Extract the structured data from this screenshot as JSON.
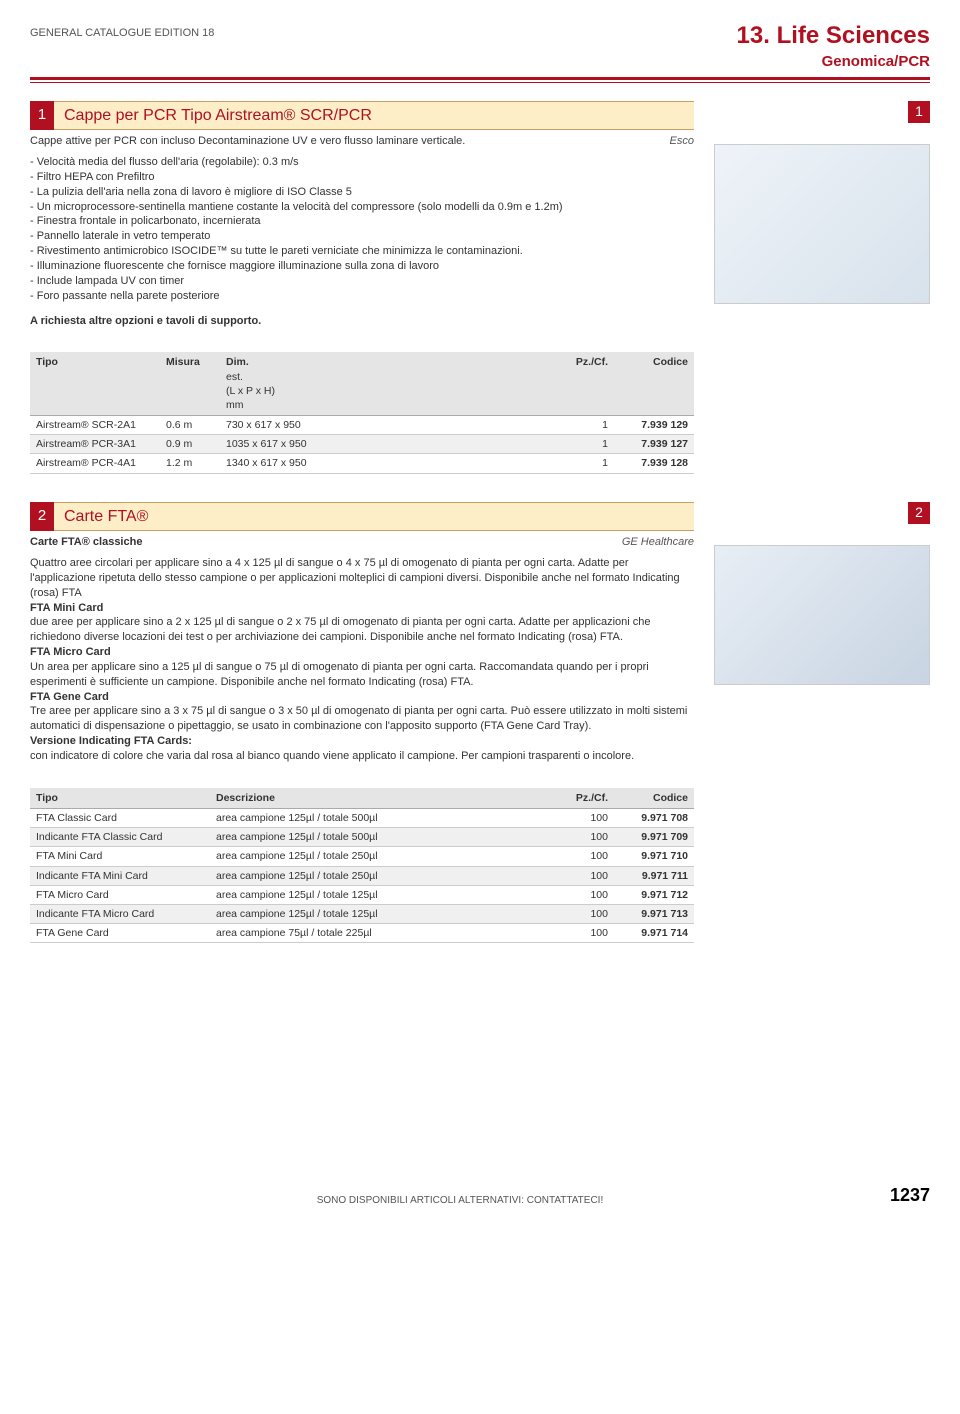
{
  "header": {
    "edition": "GENERAL CATALOGUE EDITION 18",
    "chapter": "13. Life Sciences",
    "subchapter": "Genomica/PCR"
  },
  "section1": {
    "number": "1",
    "title": "Cappe per PCR Tipo Airstream® SCR/PCR",
    "side_badge": "1",
    "subtitle": "Cappe attive per PCR con incluso Decontaminazione UV e vero flusso laminare verticale.",
    "brand": "Esco",
    "bullets": [
      "- Velocità media del flusso dell'aria (regolabile): 0.3 m/s",
      "- Filtro HEPA con Prefiltro",
      "- La pulizia dell'aria nella zona di lavoro è migliore di ISO Classe 5",
      "- Un microprocessore-sentinella mantiene costante la velocità del compressore (solo modelli da 0.9m e 1.2m)",
      "- Finestra frontale in policarbonato, incernierata",
      "- Pannello laterale in vetro temperato",
      "- Rivestimento antimicrobico ISOCIDE™ su tutte le pareti verniciate che minimizza le contaminazioni.",
      "- Illuminazione fluorescente che fornisce maggiore illuminazione sulla zona di lavoro",
      "- Include lampada UV con timer",
      "- Foro passante nella parete posteriore"
    ],
    "note": "A richiesta altre opzioni e tavoli di supporto.",
    "table": {
      "headers": {
        "tipo": "Tipo",
        "misura": "Misura",
        "dim": "Dim.",
        "dim_sub1": "est.",
        "dim_sub2": "(L x P x H)",
        "dim_unit": "mm",
        "pz": "Pz./Cf.",
        "codice": "Codice"
      },
      "rows": [
        {
          "tipo": "Airstream® SCR-2A1",
          "misura": "0.6 m",
          "dim": "730 x 617 x 950",
          "pz": "1",
          "codice": "7.939 129"
        },
        {
          "tipo": "Airstream® PCR-3A1",
          "misura": "0.9 m",
          "dim": "1035 x 617 x 950",
          "pz": "1",
          "codice": "7.939 127"
        },
        {
          "tipo": "Airstream® PCR-4A1",
          "misura": "1.2 m",
          "dim": "1340 x 617 x 950",
          "pz": "1",
          "codice": "7.939 128"
        }
      ]
    }
  },
  "section2": {
    "number": "2",
    "title": "Carte FTA®",
    "side_badge": "2",
    "sub_heading": "Carte FTA® classiche",
    "brand": "GE Healthcare",
    "para1": "Quattro aree circolari per applicare sino a 4 x 125 µl di sangue o 4 x 75 µl di omogenato di pianta per ogni carta. Adatte per l'applicazione ripetuta dello stesso campione o per applicazioni molteplici di campioni diversi. Disponibile anche nel formato Indicating (rosa) FTA",
    "h_mini": "FTA Mini Card",
    "para_mini": "due aree per applicare sino a 2 x 125 µl di sangue o 2 x 75 µl di omogenato di pianta per ogni carta. Adatte per applicazioni che richiedono diverse locazioni dei test o per archiviazione dei campioni. Disponibile anche nel formato Indicating (rosa) FTA.",
    "h_micro": "FTA Micro Card",
    "para_micro": "Un area per applicare sino a 125 µl di sangue o 75 µl di omogenato di pianta per ogni carta. Raccomandata quando per i propri esperimenti è sufficiente un campione. Disponibile anche nel formato Indicating (rosa) FTA.",
    "h_gene": "FTA Gene Card",
    "para_gene": "Tre aree per applicare sino a 3 x 75 µl di sangue o 3 x 50 µl di omogenato di pianta per ogni carta. Può essere utilizzato in molti sistemi automatici di dispensazione o pipettaggio, se usato in combinazione con l'apposito supporto (FTA Gene Card Tray).",
    "h_indic": "Versione Indicating FTA Cards:",
    "para_indic": "con indicatore di colore che varia dal rosa al bianco quando viene applicato il campione. Per campioni trasparenti o incolore.",
    "table": {
      "headers": {
        "tipo": "Tipo",
        "descrizione": "Descrizione",
        "pz": "Pz./Cf.",
        "codice": "Codice"
      },
      "rows": [
        {
          "tipo": "FTA Classic Card",
          "desc": "area campione 125µl / totale 500µl",
          "pz": "100",
          "codice": "9.971 708"
        },
        {
          "tipo": "Indicante FTA Classic Card",
          "desc": "area campione 125µl / totale 500µl",
          "pz": "100",
          "codice": "9.971 709"
        },
        {
          "tipo": "FTA Mini Card",
          "desc": "area campione 125µl / totale 250µl",
          "pz": "100",
          "codice": "9.971 710"
        },
        {
          "tipo": "Indicante FTA Mini Card",
          "desc": "area campione 125µl / totale 250µl",
          "pz": "100",
          "codice": "9.971 711"
        },
        {
          "tipo": "FTA Micro Card",
          "desc": "area campione 125µl / totale 125µl",
          "pz": "100",
          "codice": "9.971 712"
        },
        {
          "tipo": "Indicante FTA Micro Card",
          "desc": "area campione 125µl / totale 125µl",
          "pz": "100",
          "codice": "9.971 713"
        },
        {
          "tipo": "FTA Gene Card",
          "desc": "area campione 75µl / totale 225µl",
          "pz": "100",
          "codice": "9.971 714"
        }
      ]
    }
  },
  "footer": {
    "note": "SONO DISPONIBILI ARTICOLI ALTERNATIVI: CONTATTATECI!",
    "page": "1237"
  }
}
